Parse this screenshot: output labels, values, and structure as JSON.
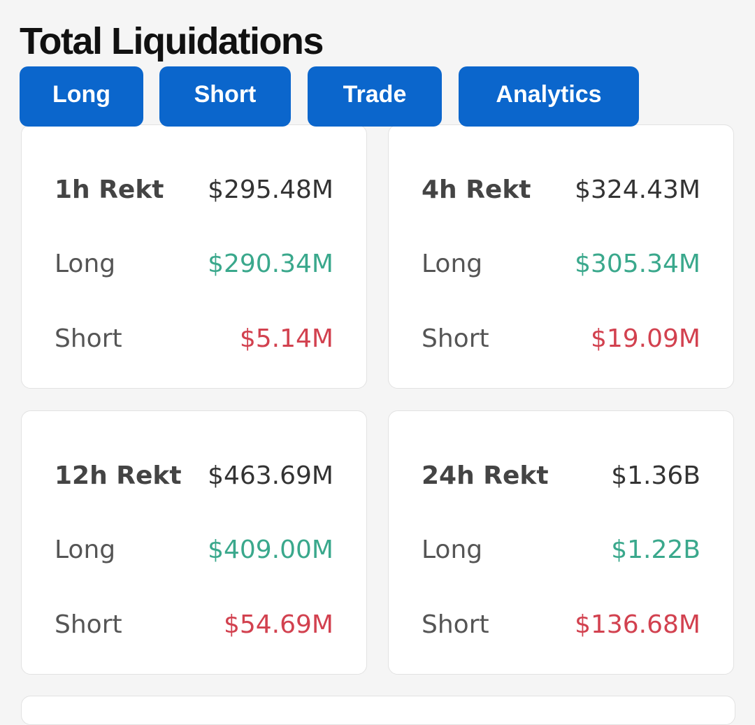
{
  "header": {
    "title": "Total Liquidations"
  },
  "tabs": [
    "Long",
    "Short",
    "Trade",
    "Analytics"
  ],
  "cards": [
    {
      "rows": [
        [
          "1h Rekt",
          "$295.48M"
        ],
        [
          "Long",
          "$290.34M"
        ],
        [
          "Short",
          "$5.14M"
        ]
      ]
    },
    {
      "rows": [
        [
          "4h Rekt",
          "$324.43M"
        ],
        [
          "Long",
          "$305.34M"
        ],
        [
          "Short",
          "$19.09M"
        ]
      ]
    },
    {
      "rows": [
        [
          "12h Rekt",
          "$463.69M"
        ],
        [
          "Long",
          "$409.00M"
        ],
        [
          "Short",
          "$54.69M"
        ]
      ]
    },
    {
      "rows": [
        [
          "24h Rekt",
          "$1.36B"
        ],
        [
          "Long",
          "$1.22B"
        ],
        [
          "Short",
          "$136.68M"
        ]
      ]
    }
  ]
}
